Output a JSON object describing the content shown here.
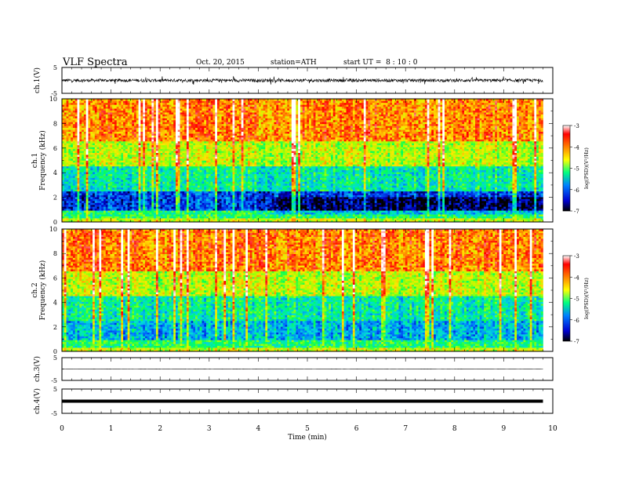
{
  "header": {
    "title": "VLF Spectra",
    "date": "Oct. 20, 2015",
    "station": "station=ATH",
    "start_ut": "start UT =  8 : 10 : 0"
  },
  "colors": {
    "wave": "#000000",
    "colorscale": [
      "#000000",
      "#0000ff",
      "#00a0ff",
      "#00ff80",
      "#ffff00",
      "#ff8000",
      "#ff0000",
      "#ffffff"
    ]
  },
  "chart_data": [
    {
      "type": "line",
      "panel": "ch1-waveform",
      "ylabel": "ch.1(V)",
      "yticks": [
        "5",
        "-5"
      ],
      "ylim": [
        -5,
        5
      ],
      "xlim": [
        0,
        10
      ],
      "note": "noisy waveform around 0 V, excursions about -1.5 to 1.5 V, until t≈9.8 min"
    },
    {
      "type": "heatmap",
      "panel": "ch1-spectrogram",
      "ylabel": "ch.1\nFrequency (kHz)",
      "yticks": [
        "0",
        "2",
        "4",
        "6",
        "8",
        "10"
      ],
      "ylim": [
        0,
        10
      ],
      "xlim": [
        0,
        10
      ],
      "colorbar": {
        "label": "log(PSD)(V²/Hz)",
        "ticks": [
          "-3",
          "-4",
          "-5",
          "-6",
          "-7"
        ],
        "range": [
          -7,
          -3
        ]
      }
    },
    {
      "type": "heatmap",
      "panel": "ch2-spectrogram",
      "ylabel": "ch.2\nFrequency (kHz)",
      "yticks": [
        "0",
        "2",
        "4",
        "6",
        "8",
        "10"
      ],
      "ylim": [
        0,
        10
      ],
      "xlim": [
        0,
        10
      ],
      "colorbar": {
        "label": "log(PSD)(V²/Hz)",
        "ticks": [
          "-3",
          "-4",
          "-5",
          "-6",
          "-7"
        ],
        "range": [
          -7,
          -3
        ]
      }
    },
    {
      "type": "line",
      "panel": "ch3-waveform",
      "ylabel": "ch.3(V)",
      "yticks": [
        "5",
        "-5"
      ],
      "ylim": [
        -5,
        5
      ],
      "xlim": [
        0,
        10
      ],
      "note": "nearly flat trace near 0 V"
    },
    {
      "type": "line",
      "panel": "ch4-waveform",
      "ylabel": "ch.4(V)",
      "yticks": [
        "5",
        "-5"
      ],
      "ylim": [
        -5,
        5
      ],
      "xlim": [
        0,
        10
      ],
      "note": "thick flat trace near 0 V"
    }
  ],
  "xaxis": {
    "label": "Time (min)",
    "ticks": [
      "0",
      "1",
      "2",
      "3",
      "4",
      "5",
      "6",
      "7",
      "8",
      "9",
      "10"
    ]
  }
}
